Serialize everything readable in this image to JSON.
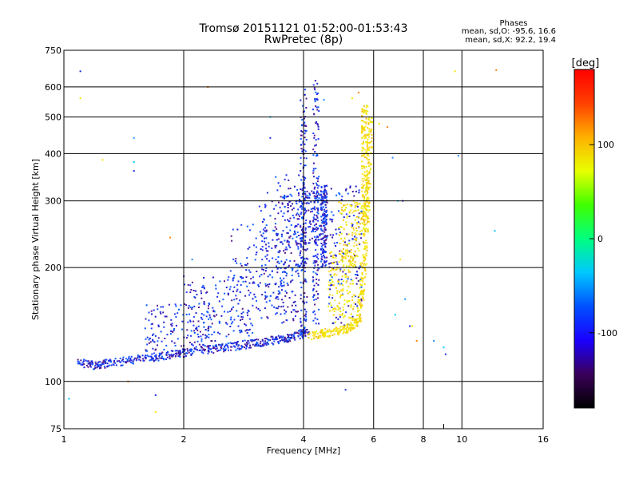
{
  "chart_data": {
    "type": "scatter",
    "title": "Tromsø 20151121 01:52:00-01:53:43",
    "subtitle": "RwPretec (8p)",
    "xlabel": "Frequency [MHz]",
    "ylabel": "Stationary phase Virtual Height [km]",
    "x_scale": "log",
    "y_scale": "log",
    "xlim": [
      1,
      16
    ],
    "ylim": [
      75,
      750
    ],
    "grid": true,
    "x_ticks": [
      1,
      2,
      4,
      6,
      8,
      10,
      16
    ],
    "x_minor_ticks": [
      9
    ],
    "y_ticks": [
      75,
      100,
      200,
      300,
      400,
      500,
      600,
      750
    ],
    "legend": {
      "title": "Phases",
      "lines": [
        "mean, sd,O: -95.6, 16.6",
        "mean, sd,X:  92.2, 19.4"
      ],
      "placement": "top-right"
    },
    "colorbar": {
      "label": "[deg]",
      "min": -180,
      "max": 180,
      "ticks": [
        100,
        0,
        -100
      ],
      "colormap": [
        "#000000",
        "#3a005a",
        "#1a00ff",
        "#0050ff",
        "#00c8ff",
        "#00ff80",
        "#40ff00",
        "#e8ff00",
        "#ffb000",
        "#ff4000",
        "#ff0000"
      ]
    },
    "series": [
      {
        "name": "O",
        "color": "#1d2fe0",
        "trace": [
          [
            1.08,
            112
          ],
          [
            1.2,
            110
          ],
          [
            1.3,
            112
          ],
          [
            1.5,
            114
          ],
          [
            1.7,
            116
          ],
          [
            1.9,
            118
          ],
          [
            2.1,
            120
          ],
          [
            2.4,
            122
          ],
          [
            2.7,
            124
          ],
          [
            3.0,
            126
          ],
          [
            3.3,
            128
          ],
          [
            3.6,
            130
          ],
          [
            3.9,
            133
          ],
          [
            4.1,
            136
          ]
        ],
        "columns": [
          [
            4.0,
            130,
            600
          ],
          [
            4.3,
            140,
            630
          ],
          [
            4.5,
            200,
            330
          ]
        ],
        "clouds": [
          [
            1.6,
            2.4,
            120,
            160
          ],
          [
            2.0,
            3.0,
            130,
            190
          ],
          [
            2.6,
            3.7,
            140,
            260
          ],
          [
            3.1,
            3.9,
            150,
            320
          ],
          [
            3.4,
            4.1,
            140,
            360
          ],
          [
            3.8,
            4.6,
            230,
            320
          ],
          [
            4.6,
            5.6,
            140,
            330
          ]
        ]
      },
      {
        "name": "X",
        "color": "#f2e600",
        "trace": [
          [
            4.1,
            132
          ],
          [
            4.5,
            134
          ],
          [
            4.9,
            136
          ],
          [
            5.2,
            138
          ],
          [
            5.5,
            145
          ],
          [
            5.6,
            170
          ],
          [
            5.7,
            210
          ],
          [
            5.75,
            260
          ],
          [
            5.8,
            320
          ],
          [
            5.85,
            400
          ],
          [
            5.9,
            500
          ]
        ],
        "columns": [
          [
            5.7,
            260,
            540
          ]
        ],
        "clouds": [
          [
            4.6,
            5.4,
            140,
            220
          ],
          [
            4.9,
            5.7,
            200,
            300
          ]
        ]
      }
    ],
    "outliers": [
      [
        1.1,
        660
      ],
      [
        1.1,
        560
      ],
      [
        2.3,
        600
      ],
      [
        1.5,
        440
      ],
      [
        1.5,
        380
      ],
      [
        1.5,
        360
      ],
      [
        1.25,
        385
      ],
      [
        1.85,
        240
      ],
      [
        2.1,
        210
      ],
      [
        1.03,
        90
      ],
      [
        1.7,
        92
      ],
      [
        1.7,
        83
      ],
      [
        1.45,
        100
      ],
      [
        7.2,
        165
      ],
      [
        6.8,
        150
      ],
      [
        7.4,
        140
      ],
      [
        7.5,
        140
      ],
      [
        7.7,
        128
      ],
      [
        8.5,
        128
      ],
      [
        9.0,
        123
      ],
      [
        9.1,
        118
      ],
      [
        9.6,
        660
      ],
      [
        12.2,
        665
      ],
      [
        9.8,
        395
      ],
      [
        12.1,
        250
      ],
      [
        7.1,
        300
      ],
      [
        6.2,
        480
      ],
      [
        6.5,
        470
      ],
      [
        6.7,
        390
      ],
      [
        6.9,
        300
      ],
      [
        5.1,
        95
      ],
      [
        5.3,
        560
      ],
      [
        5.5,
        580
      ],
      [
        4.5,
        555
      ],
      [
        3.3,
        500
      ],
      [
        3.3,
        440
      ],
      [
        7.0,
        210
      ]
    ]
  }
}
